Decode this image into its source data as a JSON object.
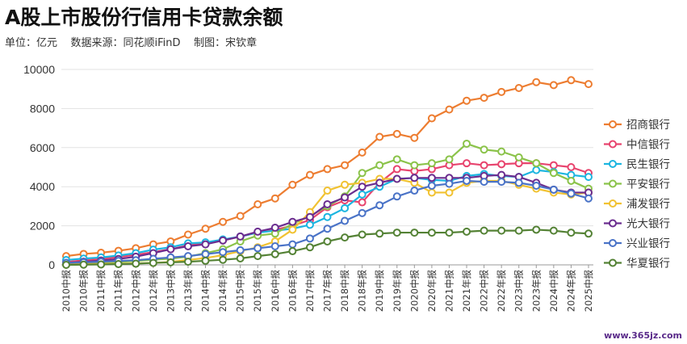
{
  "title": "A股上市股份行信用卡贷款余额",
  "subtitle": "单位：亿元    数据来源：同花顺iFinD    制图：宋钦章",
  "watermark": "www.365jz.com",
  "chart_data": {
    "type": "line",
    "ylim": [
      0,
      10000
    ],
    "yticks": [
      0,
      2000,
      4000,
      6000,
      8000,
      10000
    ],
    "grid": true,
    "legend_position": "right",
    "categories": [
      "2010中报",
      "2010年报",
      "2011中报",
      "2011年报",
      "2012中报",
      "2012年报",
      "2013中报",
      "2013年报",
      "2014中报",
      "2014年报",
      "2015中报",
      "2015年报",
      "2016中报",
      "2016年报",
      "2017中报",
      "2017年报",
      "2018中报",
      "2018年报",
      "2019中报",
      "2019年报",
      "2020中报",
      "2020年报",
      "2021中报",
      "2021年报",
      "2022中报",
      "2022年报",
      "2023中报",
      "2023年报",
      "2024中报",
      "2024年报",
      "2025中报"
    ],
    "series": [
      {
        "name": "招商银行",
        "color": "#ED7D31",
        "values": [
          450,
          560,
          620,
          720,
          850,
          1050,
          1200,
          1550,
          1850,
          2200,
          2500,
          3100,
          3400,
          4100,
          4600,
          4900,
          5100,
          5750,
          6550,
          6700,
          6500,
          7500,
          7950,
          8400,
          8550,
          8850,
          9050,
          9350,
          9200,
          9450,
          9250
        ]
      },
      {
        "name": "中信银行",
        "color": "#E8446E",
        "values": [
          150,
          230,
          300,
          400,
          520,
          650,
          800,
          1000,
          1100,
          1250,
          1450,
          1650,
          1800,
          2000,
          2300,
          2950,
          3300,
          3200,
          4200,
          4900,
          4800,
          4900,
          5100,
          5200,
          5100,
          5150,
          5200,
          5200,
          5100,
          5000,
          4700
        ]
      },
      {
        "name": "民生银行",
        "color": "#1CB5E0",
        "values": [
          250,
          320,
          380,
          480,
          600,
          780,
          900,
          1100,
          1150,
          1300,
          1450,
          1650,
          1750,
          1850,
          2050,
          2450,
          2900,
          3600,
          4000,
          4400,
          4450,
          4350,
          4300,
          4550,
          4650,
          4550,
          4500,
          4850,
          4750,
          4600,
          4500
        ]
      },
      {
        "name": "平安银行",
        "color": "#8BC34A",
        "values": [
          50,
          90,
          120,
          150,
          200,
          260,
          320,
          420,
          600,
          800,
          1200,
          1500,
          1600,
          2100,
          2500,
          3000,
          3500,
          4700,
          5100,
          5400,
          5100,
          5200,
          5400,
          6200,
          5900,
          5800,
          5500,
          5200,
          4700,
          4300,
          3900
        ]
      },
      {
        "name": "浦发银行",
        "color": "#F1C232",
        "values": [
          30,
          40,
          50,
          60,
          80,
          100,
          150,
          250,
          350,
          500,
          700,
          900,
          1200,
          1800,
          2700,
          3800,
          4100,
          4200,
          4400,
          4400,
          4200,
          3700,
          3700,
          4200,
          4300,
          4300,
          4100,
          3900,
          3700,
          3600,
          3700
        ]
      },
      {
        "name": "光大银行",
        "color": "#6B2D8F",
        "values": [
          100,
          160,
          220,
          300,
          420,
          600,
          800,
          950,
          1050,
          1250,
          1450,
          1700,
          1900,
          2200,
          2450,
          3100,
          3450,
          4000,
          4200,
          4400,
          4450,
          4450,
          4450,
          4450,
          4550,
          4600,
          4500,
          4200,
          3850,
          3700,
          3700
        ]
      },
      {
        "name": "兴业银行",
        "color": "#4A73C7",
        "values": [
          100,
          130,
          160,
          200,
          240,
          310,
          380,
          450,
          550,
          650,
          750,
          850,
          950,
          1050,
          1350,
          1850,
          2250,
          2650,
          3050,
          3500,
          3800,
          4050,
          4150,
          4300,
          4250,
          4250,
          4200,
          4050,
          3850,
          3650,
          3400
        ]
      },
      {
        "name": "华夏银行",
        "color": "#548235",
        "values": [
          0,
          10,
          20,
          40,
          60,
          100,
          130,
          160,
          210,
          260,
          330,
          450,
          550,
          700,
          900,
          1200,
          1400,
          1550,
          1600,
          1650,
          1650,
          1650,
          1650,
          1700,
          1750,
          1750,
          1750,
          1800,
          1750,
          1650,
          1600
        ]
      }
    ]
  }
}
